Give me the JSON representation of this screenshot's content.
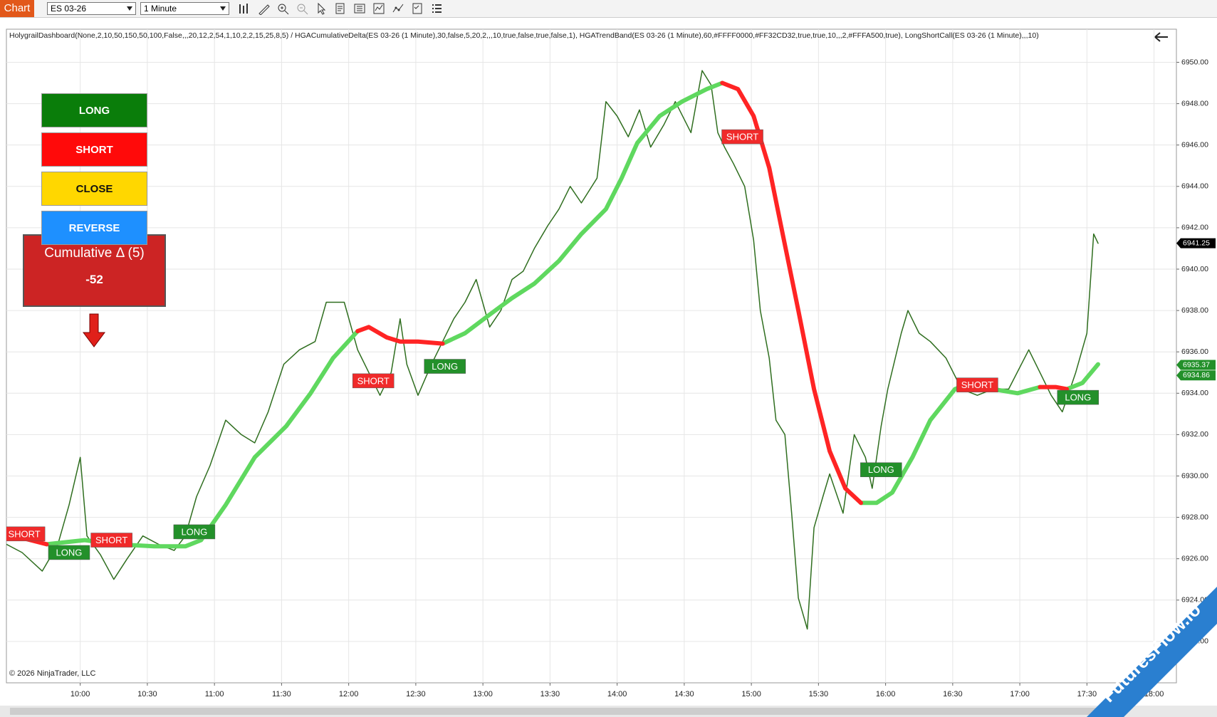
{
  "toolbar": {
    "tab": "Chart",
    "instrument": "ES 03-26",
    "interval": "1 Minute"
  },
  "indicator_label": "HolygrailDashboard(None,2,10,50,150,50,100,False,,,20,12,2,54,1,10,2,2,15,25,8,5) / HGACumulativeDelta(ES 03-26 (1 Minute),30,false,5,20,2,,,10,true,false,true,false,1), HGATrendBand(ES 03-26 (1 Minute),60,#FFFF0000,#FF32CD32,true,true,10,,,2,#FFFA500,true), LongShortCall(ES 03-26 (1 Minute),,,10)",
  "dashboard": {
    "buttons": [
      "LONG",
      "SHORT",
      "CLOSE",
      "REVERSE"
    ],
    "delta_title": "Cumulative Δ (5)",
    "delta_value": -52
  },
  "copyright": "© 2026 NinjaTrader, LLC",
  "watermark": "FuturesFlow.io",
  "chart_data": {
    "type": "line",
    "xlim": [
      "09:27",
      "18:10"
    ],
    "ylim": [
      6920,
      6951.6
    ],
    "grid": true,
    "xticks": [
      "10:00",
      "10:30",
      "11:00",
      "11:30",
      "12:00",
      "12:30",
      "13:00",
      "13:30",
      "14:00",
      "14:30",
      "15:00",
      "15:30",
      "16:00",
      "16:30",
      "17:00",
      "17:30",
      "18:00"
    ],
    "yticks": [
      {
        "value": 6922,
        "label": "6922.00"
      },
      {
        "value": 6924,
        "label": "6924.00"
      },
      {
        "value": 6926,
        "label": "6926.00"
      },
      {
        "value": 6928,
        "label": "6928.00"
      },
      {
        "value": 6930,
        "label": "6930.00"
      },
      {
        "value": 6932,
        "label": "6932.00"
      },
      {
        "value": 6934,
        "label": "6934.00"
      },
      {
        "value": 6936,
        "label": "6936.00"
      },
      {
        "value": 6938,
        "label": "6938.00"
      },
      {
        "value": 6940,
        "label": "6940.00"
      },
      {
        "value": 6942,
        "label": "6942.00"
      },
      {
        "value": 6944,
        "label": "6944.00"
      },
      {
        "value": 6946,
        "label": "6946.00"
      },
      {
        "value": 6948,
        "label": "6948.00"
      },
      {
        "value": 6950,
        "label": "6950.00"
      }
    ],
    "series": [
      {
        "color": "#2f6e1f",
        "width": 1.5,
        "x": [
          "09:27",
          "09:34",
          "09:43",
          "09:50",
          "09:55",
          "10:00",
          "10:03",
          "10:09",
          "10:15",
          "10:21",
          "10:28",
          "10:35",
          "10:42",
          "10:47",
          "10:52",
          "10:58",
          "11:05",
          "11:12",
          "11:18",
          "11:24",
          "11:31",
          "11:38",
          "11:45",
          "11:50",
          "11:58",
          "12:04",
          "12:09",
          "12:14",
          "12:19",
          "12:23",
          "12:26",
          "12:31",
          "12:37",
          "12:42",
          "12:47",
          "12:52",
          "12:57",
          "13:03",
          "13:08",
          "13:13",
          "13:18",
          "13:23",
          "13:29",
          "13:34",
          "13:39",
          "13:44",
          "13:51",
          "13:55",
          "14:00",
          "14:05",
          "14:10",
          "14:15",
          "14:21",
          "14:26",
          "14:33",
          "14:38",
          "14:42",
          "14:45",
          "14:48",
          "14:52",
          "14:57",
          "15:01",
          "15:04",
          "15:08",
          "15:11",
          "15:15",
          "15:18",
          "15:21",
          "15:25",
          "15:28",
          "15:32",
          "15:35",
          "15:41",
          "15:46",
          "15:51",
          "15:54",
          "15:58",
          "16:01",
          "16:07",
          "16:10",
          "16:15",
          "16:20",
          "16:27",
          "16:34",
          "16:41",
          "16:48",
          "16:55",
          "17:04",
          "17:09",
          "17:14",
          "17:19",
          "17:25",
          "17:30",
          "17:33",
          "17:35"
        ],
        "values": [
          6926.7,
          6926.3,
          6925.4,
          6926.7,
          6928.6,
          6930.9,
          6927.1,
          6926.2,
          6925.0,
          6926.0,
          6927.1,
          6926.7,
          6926.4,
          6927.1,
          6929.0,
          6930.5,
          6932.7,
          6932.0,
          6931.6,
          6933.1,
          6935.4,
          6936.1,
          6936.5,
          6938.4,
          6938.4,
          6936.1,
          6935.0,
          6933.9,
          6935.0,
          6937.6,
          6935.4,
          6933.9,
          6935.4,
          6936.5,
          6937.6,
          6938.4,
          6939.5,
          6937.2,
          6938.0,
          6939.5,
          6939.9,
          6941.0,
          6942.1,
          6942.9,
          6944.0,
          6943.2,
          6944.4,
          6948.1,
          6947.4,
          6946.4,
          6947.7,
          6945.9,
          6947.0,
          6948.1,
          6946.6,
          6949.6,
          6948.9,
          6946.6,
          6945.9,
          6945.1,
          6944.0,
          6941.4,
          6938.0,
          6935.7,
          6932.7,
          6932.0,
          6928.2,
          6924.1,
          6922.6,
          6927.5,
          6929.0,
          6930.1,
          6928.2,
          6932.0,
          6930.9,
          6929.4,
          6932.4,
          6934.2,
          6936.9,
          6938.0,
          6936.9,
          6936.5,
          6935.7,
          6934.2,
          6933.9,
          6934.2,
          6934.2,
          6936.1,
          6935.0,
          6933.9,
          6933.1,
          6935.0,
          6936.9,
          6941.7,
          6941.25
        ]
      },
      {
        "color": "#5fd85f",
        "width": 6,
        "x": [
          "09:27",
          "09:45",
          "10:02",
          "10:16",
          "10:33",
          "10:47",
          "10:54",
          "11:05",
          "11:18",
          "11:32",
          "11:43",
          "11:53",
          "12:04",
          "12:09",
          "12:17",
          "12:23",
          "12:31",
          "12:42",
          "12:52",
          "13:03",
          "13:13",
          "13:23",
          "13:34",
          "13:44",
          "13:55",
          "14:02",
          "14:09",
          "14:19",
          "14:29",
          "14:40",
          "14:47",
          "14:54",
          "15:01",
          "15:08",
          "15:14",
          "15:21",
          "15:28",
          "15:35",
          "15:42",
          "15:49",
          "15:56",
          "16:03",
          "16:12",
          "16:20",
          "16:31",
          "16:40",
          "16:48",
          "16:59",
          "17:09",
          "17:16",
          "17:21",
          "17:28",
          "17:35"
        ],
        "values": [
          null,
          6926.7,
          6926.9,
          6926.7,
          6926.6,
          6926.6,
          6926.9,
          6928.6,
          6930.9,
          6932.4,
          6934.0,
          6935.7,
          6937.0,
          null,
          null,
          null,
          null,
          6936.4,
          6936.9,
          6937.8,
          6938.6,
          6939.3,
          6940.4,
          6941.7,
          6942.9,
          6944.4,
          6946.1,
          6947.4,
          6948.1,
          6948.7,
          6949.0,
          null,
          null,
          null,
          null,
          null,
          null,
          null,
          null,
          6928.7,
          6928.7,
          6929.2,
          6930.9,
          6932.7,
          6934.2,
          6934.6,
          6934.2,
          6934.0,
          6934.3,
          null,
          6934.2,
          6934.5,
          6935.4
        ]
      },
      {
        "color": "#ff2424",
        "width": 6,
        "x": [
          "09:27",
          "09:45",
          "10:02",
          "10:16",
          "10:33",
          "10:47",
          "10:54",
          "11:05",
          "11:18",
          "11:32",
          "11:43",
          "11:53",
          "12:04",
          "12:09",
          "12:17",
          "12:23",
          "12:31",
          "12:42",
          "12:52",
          "13:03",
          "13:13",
          "13:23",
          "13:34",
          "13:44",
          "13:55",
          "14:02",
          "14:09",
          "14:19",
          "14:29",
          "14:40",
          "14:47",
          "14:54",
          "15:01",
          "15:08",
          "15:14",
          "15:21",
          "15:28",
          "15:35",
          "15:42",
          "15:49",
          "15:56",
          "16:03",
          "16:12",
          "16:20",
          "16:31",
          "16:40",
          "16:48",
          "16:59",
          "17:09",
          "17:16",
          "17:21",
          "17:28",
          "17:35"
        ],
        "values": [
          6927.2,
          6926.7,
          null,
          null,
          null,
          null,
          null,
          null,
          null,
          null,
          null,
          null,
          6937.0,
          6937.2,
          6936.7,
          6936.5,
          6936.5,
          6936.4,
          null,
          null,
          null,
          null,
          null,
          null,
          null,
          null,
          null,
          null,
          null,
          null,
          6949.0,
          6948.7,
          6947.4,
          6944.9,
          6941.7,
          6938.0,
          6934.2,
          6931.2,
          6929.4,
          6928.7,
          null,
          null,
          null,
          null,
          null,
          null,
          null,
          null,
          6934.3,
          6934.3,
          6934.2,
          null,
          null
        ]
      }
    ],
    "signals": [
      {
        "label": "SHORT",
        "x": "09:35",
        "y": 6927.2,
        "color": "#f02a2a"
      },
      {
        "label": "LONG",
        "x": "09:55",
        "y": 6926.3,
        "color": "#23902a"
      },
      {
        "label": "SHORT",
        "x": "10:14",
        "y": 6926.9,
        "color": "#f02a2a"
      },
      {
        "label": "LONG",
        "x": "10:51",
        "y": 6927.3,
        "color": "#23902a"
      },
      {
        "label": "SHORT",
        "x": "12:11",
        "y": 6934.6,
        "color": "#f02a2a"
      },
      {
        "label": "LONG",
        "x": "12:43",
        "y": 6935.3,
        "color": "#23902a"
      },
      {
        "label": "SHORT",
        "x": "14:56",
        "y": 6946.4,
        "color": "#f02a2a"
      },
      {
        "label": "LONG",
        "x": "15:58",
        "y": 6930.3,
        "color": "#23902a"
      },
      {
        "label": "SHORT",
        "x": "16:41",
        "y": 6934.4,
        "color": "#f02a2a"
      },
      {
        "label": "LONG",
        "x": "17:26",
        "y": 6933.8,
        "color": "#23902a"
      }
    ],
    "price_markers": [
      {
        "value": 6941.25,
        "color": "#000000"
      },
      {
        "value": 6935.37,
        "color": "#23902a"
      },
      {
        "value": 6934.86,
        "color": "#23902a"
      }
    ]
  }
}
